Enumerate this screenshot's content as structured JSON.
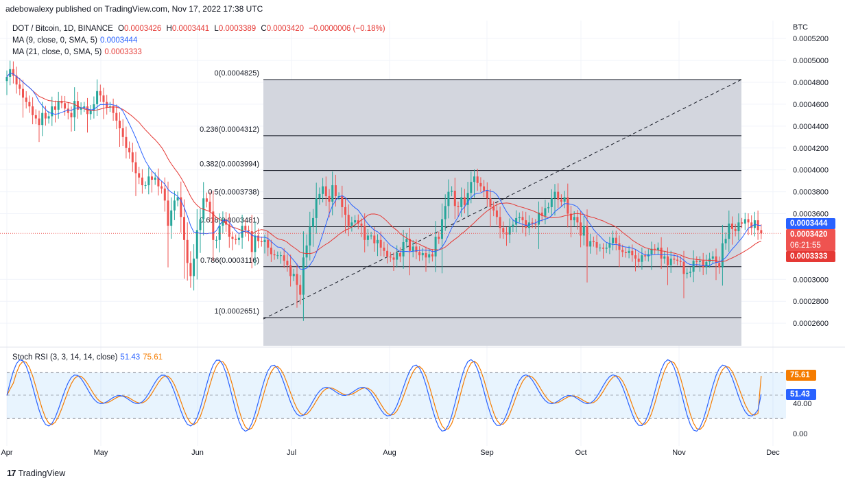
{
  "header": {
    "published": "adebowalexy published on TradingView.com, Nov 17, 2022 17:38 UTC"
  },
  "symbol": {
    "title": "DOT / Bitcoin, 1D, BINANCE",
    "o_label": "O",
    "o": "0.0003426",
    "h_label": "H",
    "h": "0.0003441",
    "l_label": "L",
    "l": "0.0003389",
    "c_label": "C",
    "c": "0.0003420",
    "change": "−0.0000006 (−0.18%)"
  },
  "ma9": {
    "label": "MA (9, close, 0, SMA, 5)",
    "value": "0.0003444"
  },
  "ma21": {
    "label": "MA (21, close, 0, SMA, 5)",
    "value": "0.0003333"
  },
  "currency": "BTC",
  "tags": {
    "ma9": "0.0003444",
    "price": "0.0003420",
    "countdown": "06:21:55",
    "ma21": "0.0003333",
    "stoch_d": "75.61",
    "stoch_k": "51.43"
  },
  "stoch": {
    "label": "Stoch RSI (3, 3, 14, 14, close)",
    "k": "51.43",
    "d": "75.61"
  },
  "colors": {
    "up": "#26a69a",
    "down": "#ef5350",
    "ma9": "#2962ff",
    "ma21": "#e53935",
    "stoch_k": "#2962ff",
    "stoch_d": "#f57c00",
    "fib_band": "#d1d4dc"
  },
  "branding": {
    "name": "TradingView"
  },
  "chart_data": {
    "type": "candlestick",
    "y_unit": "BTC",
    "ylim": [
      0.00025,
      0.00053
    ],
    "y_ticks": [
      "0.0005200",
      "0.0005000",
      "0.0004800",
      "0.0004600",
      "0.0004400",
      "0.0004200",
      "0.0004000",
      "0.0003800",
      "0.0003600",
      "0.0003000",
      "0.0002800",
      "0.0002600"
    ],
    "x_ticks": [
      "Apr",
      "May",
      "Jun",
      "Jul",
      "Aug",
      "Sep",
      "Oct",
      "Nov",
      "Dec"
    ],
    "fib_levels": [
      {
        "label": "0(0.0004825)",
        "value": 0.0004825
      },
      {
        "label": "0.236(0.0004312)",
        "value": 0.0004312
      },
      {
        "label": "0.382(0.0003994)",
        "value": 0.0003994
      },
      {
        "label": "0.5(0.0003738)",
        "value": 0.0003738
      },
      {
        "label": "0.618(0.0003481)",
        "value": 0.0003481
      },
      {
        "label": "0.786(0.0003116)",
        "value": 0.0003116
      },
      {
        "label": "1(0.0002651)",
        "value": 0.0002651
      }
    ],
    "closes": [
      0.000485,
      0.000492,
      0.000486,
      0.000478,
      0.000474,
      0.000466,
      0.000462,
      0.000458,
      0.00045,
      0.000447,
      0.000441,
      0.000452,
      0.000447,
      0.000449,
      0.000458,
      0.000455,
      0.000463,
      0.000461,
      0.000456,
      0.000452,
      0.000448,
      0.000463,
      0.000455,
      0.000457,
      0.000458,
      0.000451,
      0.000454,
      0.00046,
      0.000472,
      0.000468,
      0.000462,
      0.000457,
      0.000458,
      0.000452,
      0.000445,
      0.000438,
      0.00043,
      0.00042,
      0.000416,
      0.000407,
      0.000397,
      0.000393,
      0.000386,
      0.000386,
      0.000394,
      0.000391,
      0.000393,
      0.000385,
      0.000383,
      0.000372,
      0.000349,
      0.000363,
      0.000372,
      0.000375,
      0.000357,
      0.000336,
      0.000315,
      0.000303,
      0.000319,
      0.000345,
      0.000355,
      0.000374,
      0.000371,
      0.000362,
      0.000336,
      0.000336,
      0.000349,
      0.000355,
      0.00035,
      0.000339,
      0.000337,
      0.000336,
      0.000338,
      0.000349,
      0.000345,
      0.000344,
      0.000325,
      0.00034,
      0.000335,
      0.000334,
      0.000336,
      0.000329,
      0.000323,
      0.000322,
      0.000322,
      0.000322,
      0.000317,
      0.000313,
      0.000303,
      0.000305,
      0.000295,
      0.000286,
      0.00032,
      0.000331,
      0.000348,
      0.000356,
      0.000374,
      0.000378,
      0.000385,
      0.000376,
      0.000371,
      0.000386,
      0.000376,
      0.000376,
      0.000366,
      0.000359,
      0.000349,
      0.000352,
      0.000354,
      0.000351,
      0.000349,
      0.000336,
      0.00034,
      0.00034,
      0.000333,
      0.000336,
      0.000329,
      0.000326,
      0.000321,
      0.00032,
      0.000318,
      0.000324,
      0.000321,
      0.000334,
      0.000337,
      0.000326,
      0.00033,
      0.000325,
      0.000322,
      0.000324,
      0.00032,
      0.000323,
      0.000321,
      0.000339,
      0.000337,
      0.000355,
      0.000367,
      0.00038,
      0.000381,
      0.000367,
      0.000366,
      0.000375,
      0.000368,
      0.000379,
      0.000389,
      0.000394,
      0.000388,
      0.000385,
      0.000381,
      0.000374,
      0.000366,
      0.000363,
      0.000357,
      0.000347,
      0.000343,
      0.000341,
      0.000348,
      0.00035,
      0.000356,
      0.000357,
      0.000354,
      0.000347,
      0.000352,
      0.000351,
      0.00035,
      0.000361,
      0.000358,
      0.000365,
      0.000366,
      0.000374,
      0.00038,
      0.000373,
      0.000371,
      0.000375,
      0.00036,
      0.000354,
      0.000357,
      0.000352,
      0.00034,
      0.000349,
      0.00033,
      0.000335,
      0.000334,
      0.000329,
      0.000329,
      0.000328,
      0.000329,
      0.000333,
      0.000338,
      0.000333,
      0.000327,
      0.000325,
      0.000324,
      0.000326,
      0.000322,
      0.000319,
      0.000316,
      0.000322,
      0.000321,
      0.000323,
      0.000328,
      0.000327,
      0.000329,
      0.000319,
      0.000321,
      0.000313,
      0.000319,
      0.000318,
      0.000317,
      0.000316,
      0.000305,
      0.000306,
      0.000307,
      0.000317,
      0.000316,
      0.000317,
      0.000311,
      0.000316,
      0.000319,
      0.000321,
      0.000315,
      0.000311,
      0.000333,
      0.000337,
      0.000351,
      0.000346,
      0.000344,
      0.000352,
      0.000351,
      0.000355,
      0.000352,
      0.000347,
      0.000354,
      0.000345,
      0.000342
    ]
  }
}
